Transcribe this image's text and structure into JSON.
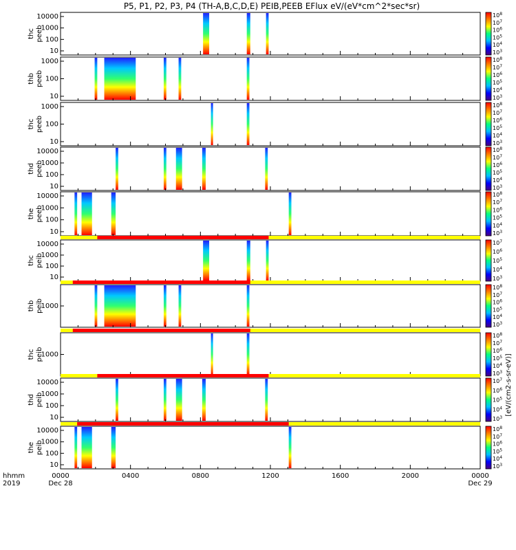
{
  "chart_data": {
    "type": "heatmap",
    "title": "P5, P1, P2, P3, P4 (TH-A,B,C,D,E) PEIB,PEEB EFlux eV/(eV*cm^2*sec*sr)",
    "xlabel_left": [
      "hhmm",
      "2019"
    ],
    "x_ticks": [
      "0000",
      "0400",
      "0800",
      "1200",
      "1600",
      "2000",
      "0000"
    ],
    "x_tick_hours": [
      0,
      4,
      8,
      12,
      16,
      20,
      24
    ],
    "date_start": "Dec 28",
    "date_end": "Dec 29",
    "xlim_hours": [
      0,
      24
    ],
    "colorbar_label": "[eV/(cm^2-s-sr-eV)]",
    "colorbar_label_text": "[eV/(cm2-s-sr-eV)]",
    "colorscale": [
      "#4b0082",
      "#0000ff",
      "#00bfff",
      "#00ff80",
      "#ffff00",
      "#ff8000",
      "#ff0000"
    ],
    "mode_bar_colors": {
      "fast": "#ff0000",
      "slow": "#ffff00"
    },
    "panels": [
      {
        "probe": "thc",
        "product": "peeb",
        "label": [
          "thc",
          "peeb"
        ],
        "yticks": [
          "10",
          "100",
          "1000",
          "10000"
        ],
        "cbar": [
          "10^3",
          "10^4",
          "10^5",
          "10^6",
          "10^7",
          "10^8"
        ],
        "bursts": [
          [
            8.15,
            8.5
          ],
          [
            10.65,
            10.85
          ],
          [
            11.75,
            11.9
          ]
        ]
      },
      {
        "probe": "thb",
        "product": "peeb",
        "label": [
          "thb",
          "peeb"
        ],
        "yticks": [
          "10",
          "100",
          "1000"
        ],
        "cbar": [
          "10^3",
          "10^4",
          "10^5",
          "10^6",
          "10^7",
          "10^8"
        ],
        "bursts": [
          [
            1.95,
            2.1
          ],
          [
            2.5,
            4.3
          ],
          [
            5.9,
            6.05
          ],
          [
            6.75,
            6.9
          ],
          [
            10.65,
            10.8
          ]
        ]
      },
      {
        "probe": "thc",
        "product": "peeb",
        "label": [
          "thc",
          "peeb"
        ],
        "yticks": [
          "10",
          "100",
          "1000"
        ],
        "cbar": [
          "10^3",
          "10^4",
          "10^5",
          "10^6",
          "10^7",
          "10^8"
        ],
        "bursts": [
          [
            8.6,
            8.72
          ],
          [
            10.65,
            10.8
          ]
        ]
      },
      {
        "probe": "thd",
        "product": "peeb",
        "label": [
          "thd",
          "peeb"
        ],
        "yticks": [
          "10",
          "100",
          "1000",
          "10000"
        ],
        "cbar": [
          "10^3",
          "10^4",
          "10^5",
          "10^6",
          "10^7",
          "10^8"
        ],
        "bursts": [
          [
            3.15,
            3.3
          ],
          [
            5.9,
            6.05
          ],
          [
            6.6,
            6.95
          ],
          [
            8.1,
            8.3
          ],
          [
            11.7,
            11.85
          ]
        ]
      },
      {
        "probe": "the",
        "product": "peeb",
        "label": [
          "the",
          "peeb"
        ],
        "yticks": [
          "10",
          "100",
          "1000",
          "10000"
        ],
        "cbar": [
          "10^3",
          "10^4",
          "10^5",
          "10^6",
          "10^7",
          "10^8"
        ],
        "bursts": [
          [
            0.8,
            0.95
          ],
          [
            1.2,
            1.8
          ],
          [
            2.9,
            3.15
          ],
          [
            13.05,
            13.2
          ]
        ]
      },
      {
        "probe": "thc",
        "product": "peib",
        "label": [
          "thc",
          "peib"
        ],
        "yticks": [
          "10",
          "100",
          "1000",
          "10000"
        ],
        "cbar": [
          "10^3",
          "10^4",
          "10^5",
          "10^6",
          "10^7"
        ],
        "mode_fast": [
          2.1,
          11.9
        ],
        "bursts": [
          [
            8.15,
            8.5
          ],
          [
            10.65,
            10.85
          ],
          [
            11.75,
            11.9
          ]
        ]
      },
      {
        "probe": "thb",
        "product": "peib",
        "label": [
          "thb",
          "peib"
        ],
        "yticks": [
          "1000"
        ],
        "cbar": [
          "10^3",
          "10^4",
          "10^5",
          "10^6",
          "10^7",
          "10^8"
        ],
        "mode_fast": [
          0.7,
          10.85
        ],
        "bursts": [
          [
            1.95,
            2.1
          ],
          [
            2.5,
            4.3
          ],
          [
            5.9,
            6.05
          ],
          [
            6.75,
            6.9
          ],
          [
            10.65,
            10.8
          ]
        ]
      },
      {
        "probe": "thc",
        "product": "peib",
        "label": [
          "thc",
          "peib"
        ],
        "yticks": [
          "1000"
        ],
        "cbar": [
          "10^3",
          "10^4",
          "10^5",
          "10^6",
          "10^7",
          "10^8"
        ],
        "mode_fast": [
          0.7,
          10.85
        ],
        "bursts": [
          [
            8.6,
            8.72
          ],
          [
            10.65,
            10.8
          ]
        ]
      },
      {
        "probe": "thd",
        "product": "peib",
        "label": [
          "thd",
          "peib"
        ],
        "yticks": [
          "10",
          "100",
          "1000",
          "10000"
        ],
        "cbar": [
          "10^3",
          "10^4",
          "10^5",
          "10^6",
          "10^7"
        ],
        "mode_fast": [
          2.1,
          11.9
        ],
        "bursts": [
          [
            3.15,
            3.3
          ],
          [
            5.9,
            6.05
          ],
          [
            6.6,
            6.95
          ],
          [
            8.1,
            8.3
          ],
          [
            11.7,
            11.85
          ]
        ]
      },
      {
        "probe": "the",
        "product": "peib",
        "label": [
          "the",
          "peib"
        ],
        "yticks": [
          "10",
          "100",
          "1000",
          "10000"
        ],
        "cbar": [
          "10^3",
          "10^4",
          "10^5",
          "10^6",
          "10^7",
          "10^8"
        ],
        "mode_fast": [
          0.95,
          13.05
        ],
        "bursts": [
          [
            0.8,
            0.95
          ],
          [
            1.2,
            1.8
          ],
          [
            2.9,
            3.15
          ],
          [
            13.05,
            13.2
          ]
        ]
      }
    ]
  }
}
